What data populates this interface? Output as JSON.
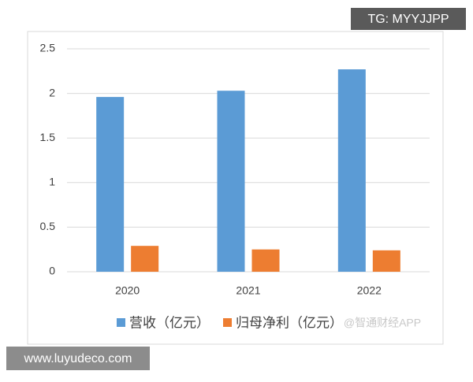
{
  "chart_data": {
    "type": "bar",
    "categories": [
      "2020",
      "2021",
      "2022"
    ],
    "series": [
      {
        "name": "营收（亿元）",
        "color": "#5b9bd5",
        "values": [
          1.96,
          2.03,
          2.27
        ]
      },
      {
        "name": "归母净利（亿元）",
        "color": "#ed7d31",
        "values": [
          0.29,
          0.25,
          0.24
        ]
      }
    ],
    "ylim": [
      0,
      2.5
    ],
    "yticks": [
      0,
      0.5,
      1,
      1.5,
      2,
      2.5
    ],
    "grid": true,
    "legend": "bottom"
  },
  "watermarks": {
    "top_right": "TG: MYYJJPP",
    "bottom_left": "www.luyudeco.com",
    "source": "@智通财经APP"
  }
}
